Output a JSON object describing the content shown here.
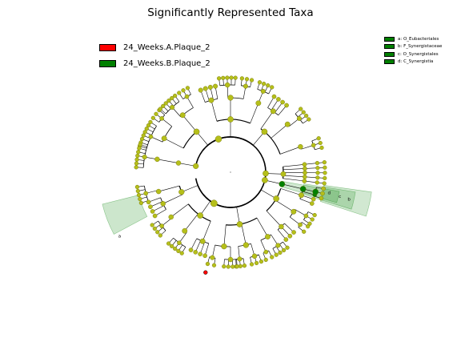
{
  "title": "Significantly Represented Taxa",
  "legend": [
    {
      "label": "24_Weeks.A.Plaque_2",
      "color": "#ff0000"
    },
    {
      "label": "24_Weeks.B.Plaque_2",
      "color": "#008000"
    }
  ],
  "clade_legend": [
    {
      "label": "a: O_Eubacteriales",
      "color": "#008000"
    },
    {
      "label": "b: F_Synergistaceae",
      "color": "#008000"
    },
    {
      "label": "c: O_Synergistales",
      "color": "#008000"
    },
    {
      "label": "d: C_Synergistia",
      "color": "#008000"
    }
  ],
  "highlight_letters": [
    "a",
    "b",
    "c",
    "d"
  ],
  "colors": {
    "node": "#b5bf1a",
    "node_stroke": "#6b6b00",
    "edge": "#000000",
    "highlight_fill": "#008000",
    "red_node": "#ff0000",
    "green_node": "#008000"
  }
}
